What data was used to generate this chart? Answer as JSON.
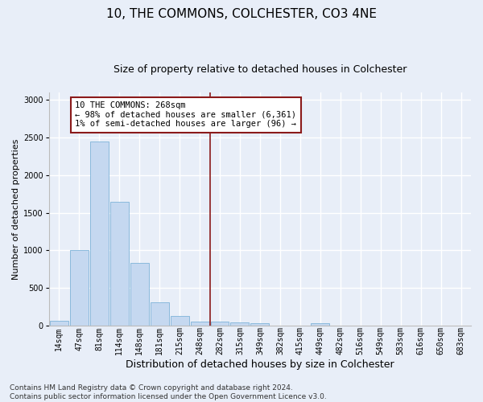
{
  "title": "10, THE COMMONS, COLCHESTER, CO3 4NE",
  "subtitle": "Size of property relative to detached houses in Colchester",
  "xlabel": "Distribution of detached houses by size in Colchester",
  "ylabel": "Number of detached properties",
  "bar_labels": [
    "14sqm",
    "47sqm",
    "81sqm",
    "114sqm",
    "148sqm",
    "181sqm",
    "215sqm",
    "248sqm",
    "282sqm",
    "315sqm",
    "349sqm",
    "382sqm",
    "415sqm",
    "449sqm",
    "482sqm",
    "516sqm",
    "549sqm",
    "583sqm",
    "616sqm",
    "650sqm",
    "683sqm"
  ],
  "bar_values": [
    60,
    1000,
    2450,
    1650,
    830,
    310,
    130,
    55,
    55,
    40,
    30,
    0,
    0,
    30,
    0,
    0,
    0,
    0,
    0,
    0,
    0
  ],
  "bar_color": "#c5d8f0",
  "bar_edge_color": "#7eb3d8",
  "vline_x_index": 7.5,
  "vline_color": "#8b1a1a",
  "annotation_text": "10 THE COMMONS: 268sqm\n← 98% of detached houses are smaller (6,361)\n1% of semi-detached houses are larger (96) →",
  "annotation_box_color": "#8b1a1a",
  "annotation_fill": "#ffffff",
  "ylim": [
    0,
    3100
  ],
  "yticks": [
    0,
    500,
    1000,
    1500,
    2000,
    2500,
    3000
  ],
  "footer_line1": "Contains HM Land Registry data © Crown copyright and database right 2024.",
  "footer_line2": "Contains public sector information licensed under the Open Government Licence v3.0.",
  "bg_color": "#e8eef8",
  "grid_color": "#ffffff",
  "title_fontsize": 11,
  "subtitle_fontsize": 9,
  "axis_label_fontsize": 8,
  "tick_fontsize": 7,
  "annotation_fontsize": 7.5,
  "footer_fontsize": 6.5
}
